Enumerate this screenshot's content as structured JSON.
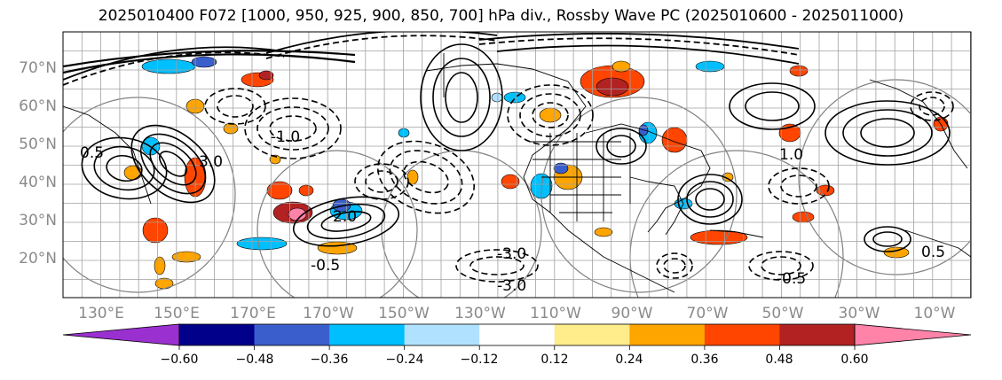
{
  "title": "2025010400 F072 [1000, 950, 925, 900, 850, 700] hPa div., Rossby Wave PC (2025010600 - 2025011000)",
  "lat_labels": [
    "70°N",
    "60°N",
    "50°N",
    "40°N",
    "30°N",
    "20°N"
  ],
  "lon_labels": [
    "130°E",
    "150°E",
    "170°E",
    "170°W",
    "150°W",
    "130°W",
    "110°W",
    "90°W",
    "70°W",
    "50°W",
    "30°W",
    "10°W"
  ],
  "contour_labels": [
    "0.5",
    "3.0",
    "-1.0",
    "-0.5",
    "2.0",
    "-3.0",
    "1.0",
    "0.5",
    "-0.5",
    "-3.0"
  ],
  "colorbar": {
    "ticks": [
      "−0.60",
      "−0.48",
      "−0.36",
      "−0.24",
      "−0.12",
      "0.12",
      "0.24",
      "0.36",
      "0.48",
      "0.60"
    ],
    "under_color": "#9b30d0",
    "over_color": "#ff82a9",
    "colors": [
      "#00008b",
      "#3a5fcd",
      "#00bfff",
      "#b0e2ff",
      "#ffffff",
      "#ffec8b",
      "#ffa500",
      "#ff4500",
      "#b22222"
    ]
  },
  "map_colors": {
    "land_line": "#000000",
    "grid": "#a0a0a0",
    "circle": "#808080"
  }
}
